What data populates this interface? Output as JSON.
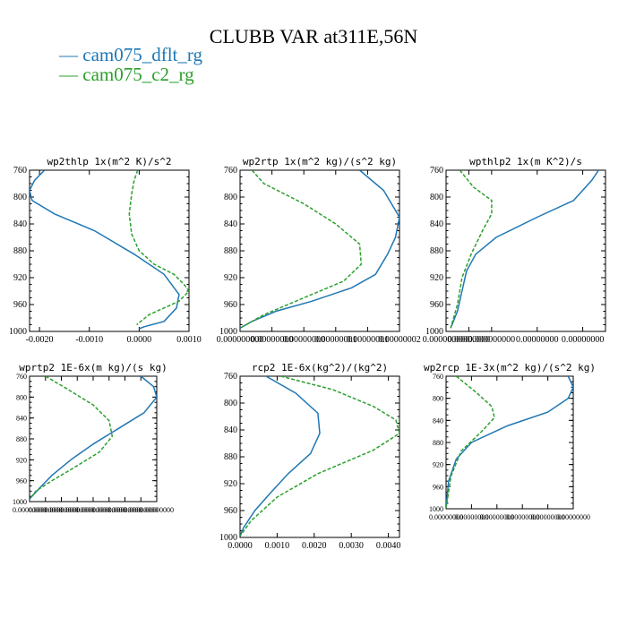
{
  "figure": {
    "title": "CLUBB VAR at311E,56N"
  },
  "legend": [
    {
      "name": "cam075_dflt_rg",
      "color": "#1f77b4",
      "marker": "—"
    },
    {
      "name": "cam075_c2_rg",
      "color": "#2ca02c",
      "marker": "—"
    }
  ],
  "chart_data": [
    {
      "type": "line",
      "title": "wp2thlp  1x(m^2 K)/s^2",
      "xlim": [
        -0.0022,
        0.001
      ],
      "ylim": [
        760,
        1000
      ],
      "yinvert": true,
      "xticks": [
        -0.002,
        -0.001,
        0.0,
        0.001
      ],
      "xtick_labels": [
        "-0.0020",
        "-0.0010",
        "0.0000",
        "0.0010"
      ],
      "yticks": [
        760,
        800,
        840,
        880,
        920,
        960,
        1000
      ],
      "ytick_labels": [
        "760",
        "800",
        "840",
        "880",
        "920",
        "960",
        "1000"
      ],
      "series": [
        {
          "name": "cam075_dflt_rg",
          "color": "#1f77b4",
          "dash": "",
          "x": [
            -0.0019,
            -0.0021,
            -0.0022,
            -0.00215,
            -0.0017,
            -0.0009,
            -0.0001,
            0.0005,
            0.0008,
            0.00075,
            0.0005,
            0.0001,
            0.0
          ],
          "y": [
            760,
            775,
            790,
            805,
            825,
            850,
            885,
            915,
            945,
            965,
            985,
            993,
            996
          ]
        },
        {
          "name": "cam075_c2_rg",
          "color": "#2ca02c",
          "dash": "4,2",
          "x": [
            -3e-05,
            -0.0001,
            -0.00015,
            -0.0002,
            -0.00015,
            0.0,
            0.0003,
            0.0007,
            0.0009,
            0.001,
            0.0008,
            0.0002,
            -5e-05
          ],
          "y": [
            760,
            775,
            795,
            825,
            855,
            880,
            900,
            915,
            930,
            940,
            955,
            975,
            990
          ]
        }
      ]
    },
    {
      "type": "line",
      "title": "wp2rtp  1x(m^2 kg)/(s^2 kg)",
      "xlim": [
        0.0,
        2e-08
      ],
      "ylim": [
        760,
        1000
      ],
      "yinvert": true,
      "xticks": [
        0.0,
        4e-09,
        8e-09,
        1.2e-08,
        1.6e-08,
        2e-08
      ],
      "xtick_labels": [
        "0.000000000",
        "0.00000000",
        "0.00000000",
        "0.00000001",
        "0.00000001",
        "0.00000002"
      ],
      "yticks": [
        760,
        800,
        840,
        880,
        920,
        960,
        1000
      ],
      "ytick_labels": [
        "760",
        "800",
        "840",
        "880",
        "920",
        "960",
        "1000"
      ],
      "series": [
        {
          "name": "cam075_dflt_rg",
          "color": "#1f77b4",
          "dash": "",
          "x": [
            1.5e-08,
            1.8e-08,
            2e-08,
            1.95e-08,
            1.85e-08,
            1.7e-08,
            1.4e-08,
            9e-09,
            4.5e-09,
            1.5e-09,
            0.0
          ],
          "y": [
            760,
            790,
            830,
            860,
            885,
            915,
            935,
            955,
            970,
            985,
            995
          ]
        },
        {
          "name": "cam075_c2_rg",
          "color": "#2ca02c",
          "dash": "4,2",
          "x": [
            1.5e-09,
            3e-09,
            8e-09,
            1.2e-08,
            1.5e-08,
            1.52e-08,
            1.3e-08,
            8e-09,
            3e-09,
            0.0
          ],
          "y": [
            760,
            780,
            810,
            840,
            870,
            900,
            925,
            950,
            975,
            995
          ]
        }
      ]
    },
    {
      "type": "line",
      "title": "wpthlp2  1x(m K^2)/s",
      "xlim": [
        0.0,
        3.5e-11
      ],
      "ylim": [
        760,
        1000
      ],
      "yinvert": true,
      "xticks": [
        0.0,
        5e-12,
        1e-11,
        2e-11,
        3e-11
      ],
      "xtick_labels": [
        "0.000000000",
        "0.00000000",
        "0.000000000",
        "0.00000000",
        "0.00000000"
      ],
      "yticks": [
        760,
        800,
        840,
        880,
        920,
        960,
        1000
      ],
      "ytick_labels": [
        "760",
        "800",
        "840",
        "880",
        "920",
        "960",
        "1000"
      ],
      "series": [
        {
          "name": "cam075_dflt_rg",
          "color": "#1f77b4",
          "dash": "",
          "x": [
            3.4e-11,
            3.2e-11,
            2.8e-11,
            2e-11,
            1.1e-11,
            6.5e-12,
            4.5e-12,
            3.5e-12,
            2.5e-12,
            1e-12
          ],
          "y": [
            755,
            775,
            805,
            830,
            860,
            885,
            910,
            940,
            970,
            995
          ]
        },
        {
          "name": "cam075_c2_rg",
          "color": "#2ca02c",
          "dash": "4,2",
          "x": [
            3e-12,
            6e-12,
            1e-11,
            1e-11,
            8e-12,
            5.5e-12,
            3.5e-12,
            2.5e-12,
            1e-12
          ],
          "y": [
            760,
            785,
            805,
            825,
            850,
            885,
            920,
            960,
            995
          ]
        }
      ]
    },
    {
      "type": "line",
      "title": "wprtp2  1E-6x(m kg)/(s kg)",
      "xlim": [
        0.0,
        4e-11
      ],
      "ylim": [
        760,
        1000
      ],
      "yinvert": true,
      "xticks": [
        0.0,
        5e-12,
        1e-11,
        1.5e-11,
        2e-11,
        2.5e-11,
        3e-11,
        3.5e-11,
        4e-11
      ],
      "xtick_labels": [
        "0.00000000",
        "0.00000000",
        "0.00000000",
        "0.00000000",
        "0.00000000",
        "0.00000000",
        "0.00000000",
        "0.00000000",
        "0.00000000"
      ],
      "yticks": [
        760,
        800,
        840,
        880,
        920,
        960,
        1000
      ],
      "ytick_labels": [
        "760",
        "800",
        "840",
        "880",
        "920",
        "960",
        "1000"
      ],
      "series": [
        {
          "name": "cam075_dflt_rg",
          "color": "#1f77b4",
          "dash": "",
          "x": [
            3.5e-11,
            3.9e-11,
            4e-11,
            3.6e-11,
            2.8e-11,
            2e-11,
            1.3e-11,
            7e-12,
            3e-12,
            0.0
          ],
          "y": [
            760,
            780,
            800,
            830,
            860,
            890,
            920,
            950,
            975,
            995
          ]
        },
        {
          "name": "cam075_c2_rg",
          "color": "#2ca02c",
          "dash": "4,2",
          "x": [
            5e-12,
            1.2e-11,
            2e-11,
            2.5e-11,
            2.6e-11,
            2.2e-11,
            1.4e-11,
            7e-12,
            2e-12,
            0.0
          ],
          "y": [
            760,
            785,
            815,
            845,
            875,
            905,
            935,
            960,
            980,
            995
          ]
        }
      ]
    },
    {
      "type": "line",
      "title": "rcp2  1E-6x(kg^2)/(kg^2)",
      "xlim": [
        0.0,
        0.0043
      ],
      "ylim": [
        760,
        1000
      ],
      "yinvert": true,
      "xticks": [
        0.0,
        0.001,
        0.002,
        0.003,
        0.004
      ],
      "xtick_labels": [
        "0.0000",
        "0.0010",
        "0.0020",
        "0.0030",
        "0.0040"
      ],
      "yticks": [
        760,
        800,
        840,
        880,
        920,
        960,
        1000
      ],
      "ytick_labels": [
        "760",
        "800",
        "840",
        "880",
        "920",
        "960",
        "1000"
      ],
      "series": [
        {
          "name": "cam075_dflt_rg",
          "color": "#1f77b4",
          "dash": "",
          "x": [
            0.0007,
            0.0015,
            0.0021,
            0.00215,
            0.0019,
            0.0013,
            0.0008,
            0.0004,
            0.0001,
            0.0
          ],
          "y": [
            760,
            785,
            815,
            845,
            875,
            905,
            935,
            960,
            985,
            998
          ]
        },
        {
          "name": "cam075_c2_rg",
          "color": "#2ca02c",
          "dash": "4,2",
          "x": [
            0.0011,
            0.0025,
            0.0036,
            0.0042,
            0.0043,
            0.0036,
            0.0021,
            0.001,
            0.0003,
            0.0
          ],
          "y": [
            760,
            780,
            805,
            825,
            845,
            870,
            905,
            940,
            975,
            998
          ]
        }
      ]
    },
    {
      "type": "line",
      "title": "wp2rcp  1E-3x(m^2 kg)/(s^2 kg)",
      "xlim": [
        0.0,
        2.5e-12
      ],
      "ylim": [
        760,
        1000
      ],
      "yinvert": true,
      "xticks": [
        0.0,
        5e-13,
        1e-12,
        1.5e-12,
        2e-12,
        2.5e-12
      ],
      "xtick_labels": [
        "0.00000000",
        "0.00000000",
        "0.00000000",
        "0.00000000",
        "0.00000000",
        "0.00000000"
      ],
      "yticks": [
        760,
        800,
        840,
        880,
        920,
        960,
        1000
      ],
      "ytick_labels": [
        "760",
        "800",
        "840",
        "880",
        "920",
        "960",
        "1000"
      ],
      "series": [
        {
          "name": "cam075_dflt_rg",
          "color": "#1f77b4",
          "dash": "",
          "x": [
            2.4e-12,
            2.5e-12,
            2.4e-12,
            2e-12,
            1.2e-12,
            5e-13,
            2e-13,
            5e-14,
            0.0
          ],
          "y": [
            760,
            780,
            800,
            825,
            850,
            880,
            910,
            950,
            998
          ]
        },
        {
          "name": "cam075_c2_rg",
          "color": "#2ca02c",
          "dash": "4,2",
          "x": [
            2e-13,
            6e-13,
            9e-13,
            9.5e-13,
            7e-13,
            3e-13,
            1e-13,
            0.0
          ],
          "y": [
            760,
            790,
            815,
            835,
            860,
            895,
            940,
            998
          ]
        }
      ]
    }
  ]
}
